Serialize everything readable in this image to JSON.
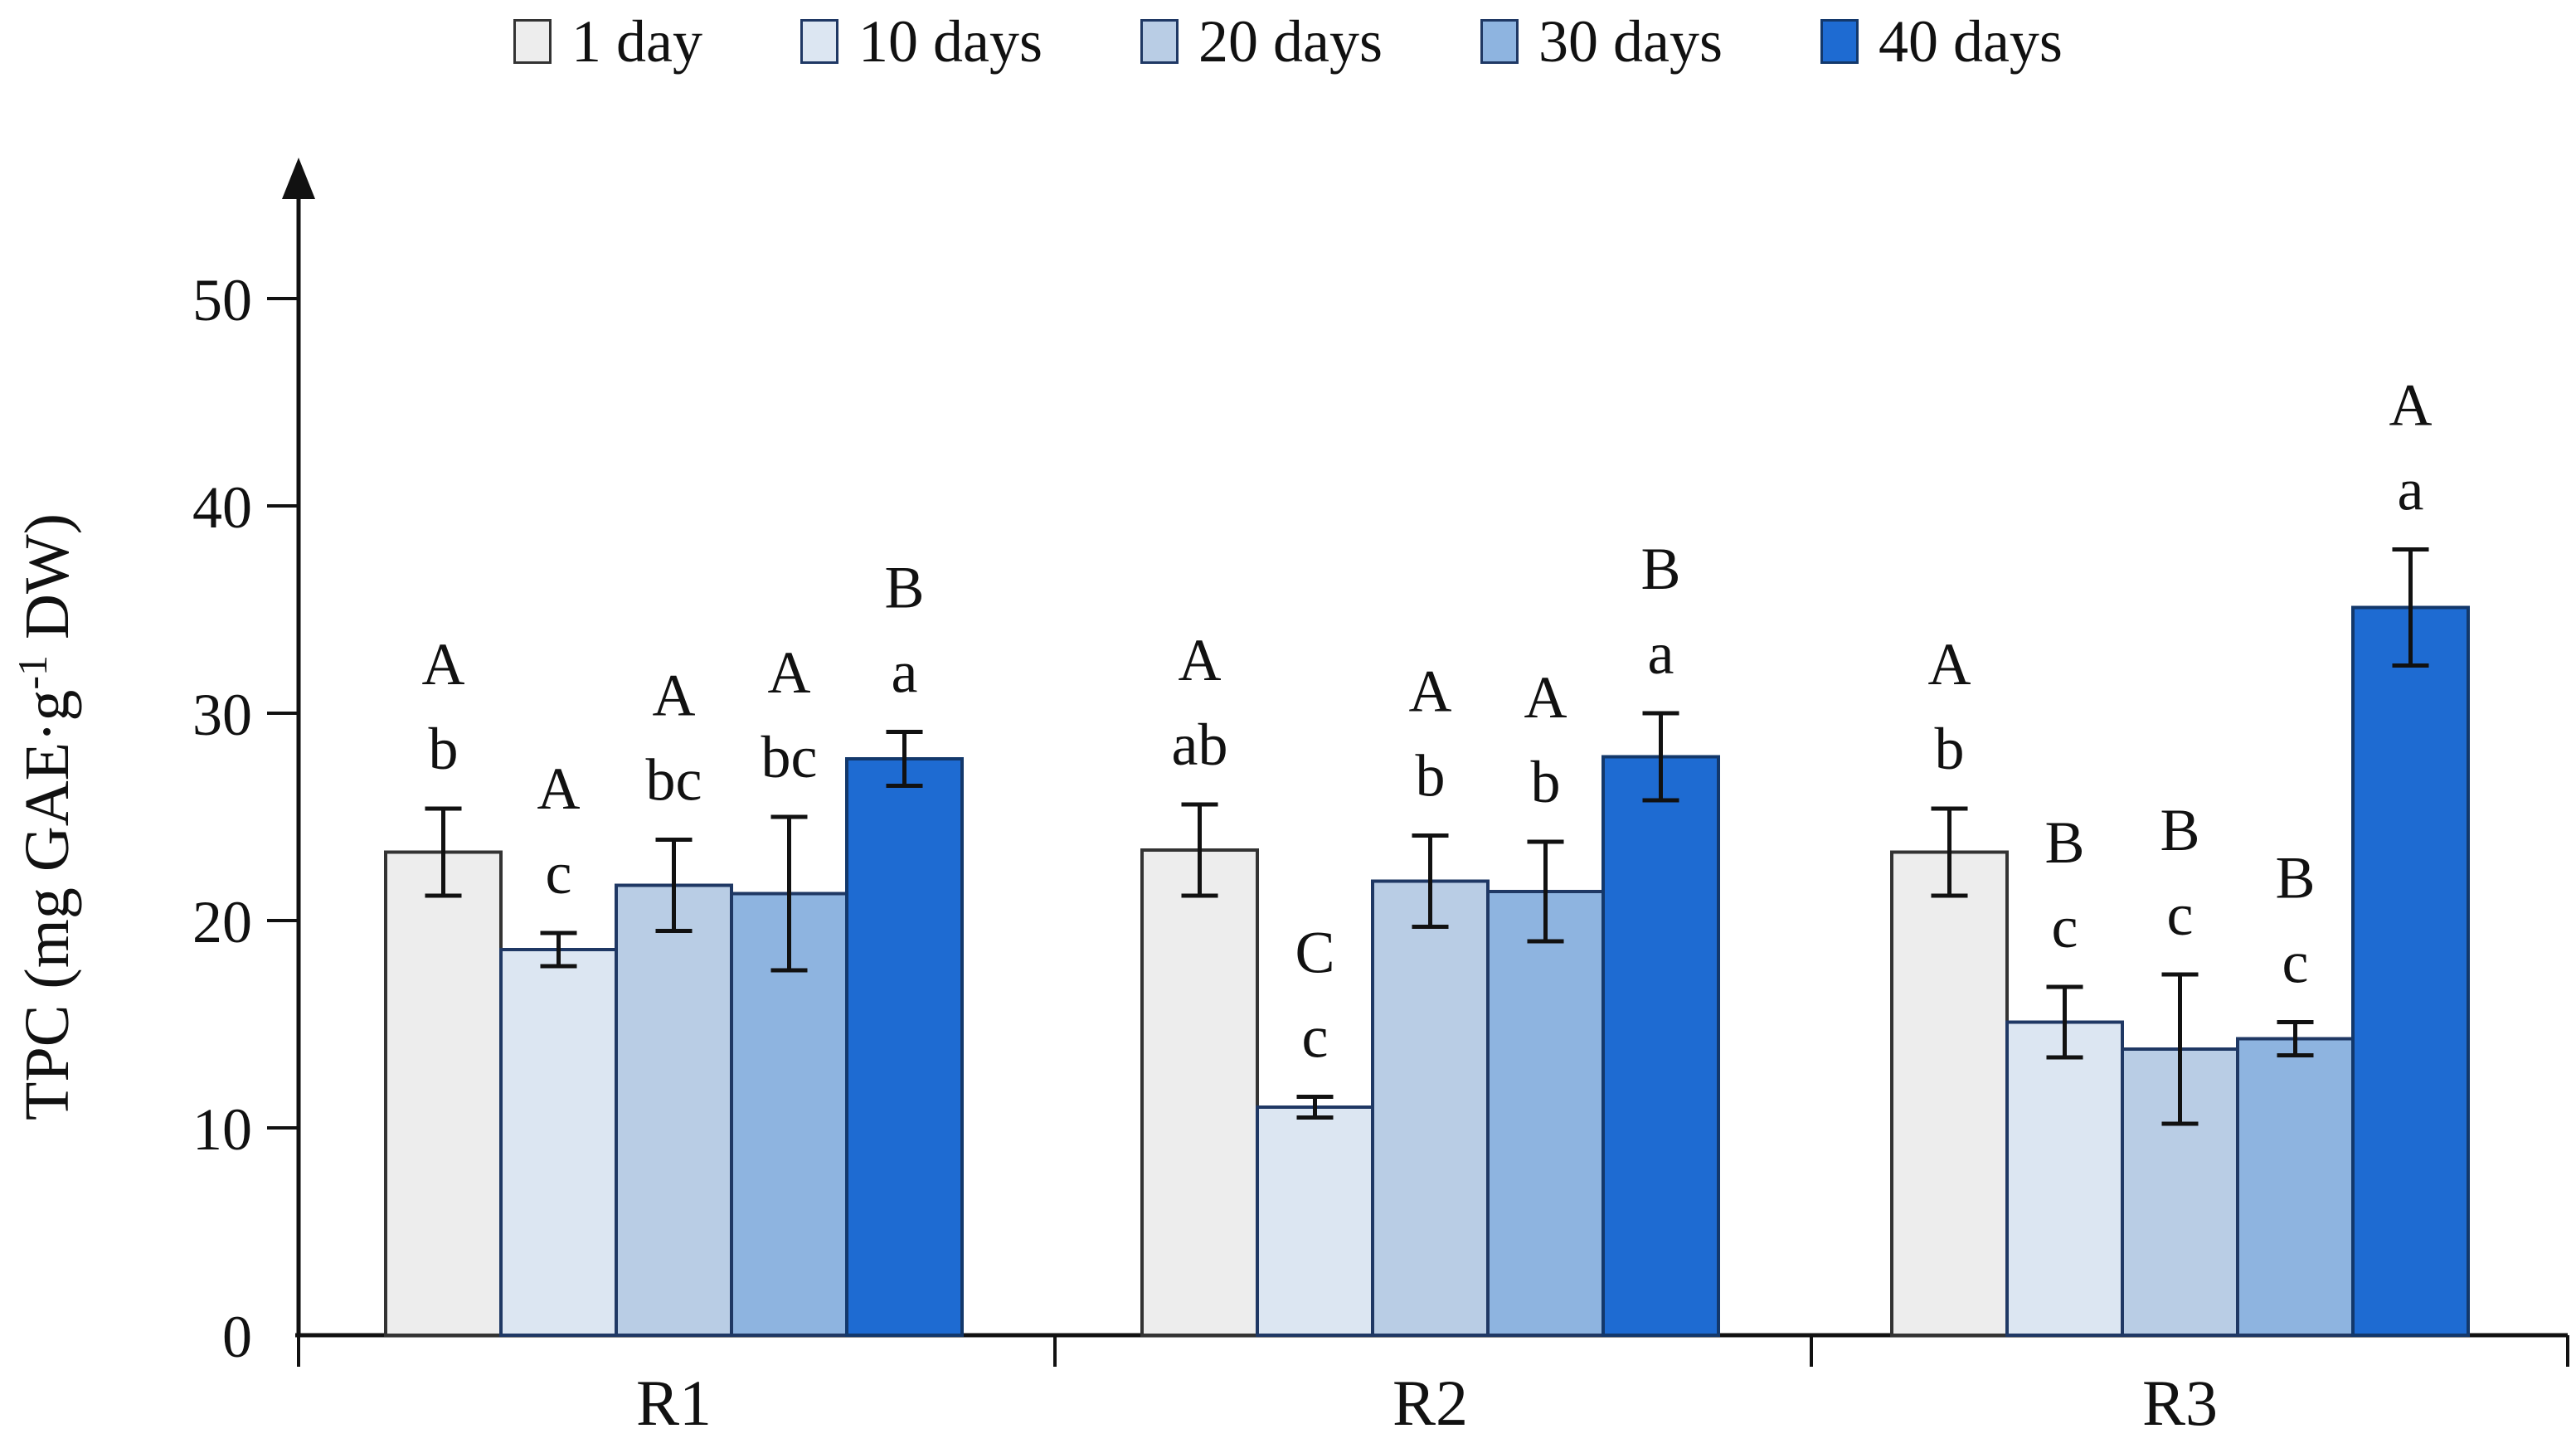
{
  "chart_data": {
    "type": "bar",
    "title": "",
    "xlabel": "",
    "ylabel": "TPC (mg GAE·g⁻¹ DW)",
    "ylabel_parts": {
      "pre": "TPC (mg GAE·g",
      "sup": "-1",
      "post": " DW)"
    },
    "ylim": [
      0,
      55
    ],
    "yticks": [
      0,
      10,
      20,
      30,
      40,
      50
    ],
    "grid": false,
    "legend_position": "top",
    "axis_color": "#111111",
    "categories": [
      "R1",
      "R2",
      "R3"
    ],
    "series": [
      {
        "name": "1 day",
        "color": "#EDEDED",
        "border": "#333333",
        "values": [
          23.3,
          23.4,
          23.3
        ],
        "errors": [
          2.1,
          2.2,
          2.1
        ],
        "letters": [
          [
            "A",
            "b"
          ],
          [
            "A",
            "ab"
          ],
          [
            "A",
            "b"
          ]
        ]
      },
      {
        "name": "10 days",
        "color": "#DCE6F2",
        "border": "#1F3864",
        "values": [
          18.6,
          11.0,
          15.1
        ],
        "errors": [
          0.8,
          0.5,
          1.7
        ],
        "letters": [
          [
            "A",
            "c"
          ],
          [
            "C",
            "c"
          ],
          [
            "B",
            "c"
          ]
        ]
      },
      {
        "name": "20 days",
        "color": "#B9CDE5",
        "border": "#1F3864",
        "values": [
          21.7,
          21.9,
          13.8
        ],
        "errors": [
          2.2,
          2.2,
          3.6
        ],
        "letters": [
          [
            "A",
            "bc"
          ],
          [
            "A",
            "b"
          ],
          [
            "B",
            "c"
          ]
        ]
      },
      {
        "name": "30 days",
        "color": "#8EB4E0",
        "border": "#1F3864",
        "values": [
          21.3,
          21.4,
          14.3
        ],
        "errors": [
          3.7,
          2.4,
          0.8
        ],
        "letters": [
          [
            "A",
            "bc"
          ],
          [
            "A",
            "b"
          ],
          [
            "B",
            "c"
          ]
        ]
      },
      {
        "name": "40 days",
        "color": "#1E6BD2",
        "border": "#13386B",
        "values": [
          27.8,
          27.9,
          35.1
        ],
        "errors": [
          1.3,
          2.1,
          2.8
        ],
        "letters": [
          [
            "B",
            "a"
          ],
          [
            "B",
            "a"
          ],
          [
            "A",
            "a"
          ]
        ]
      }
    ]
  }
}
